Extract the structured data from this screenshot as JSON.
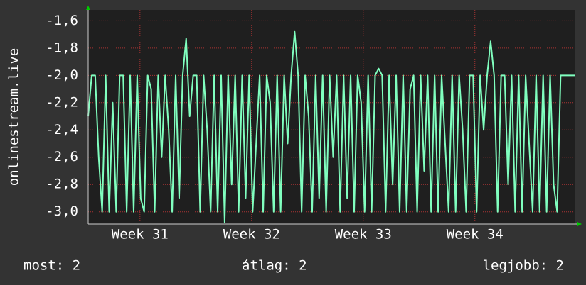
{
  "chart_data": {
    "type": "line",
    "y_label": "onlinestream.live",
    "series": [
      {
        "name": "onlinestream.live",
        "color": "#80ffbf",
        "values": [
          -2.3,
          -2.0,
          -2.0,
          -2.6,
          -3.0,
          -2.0,
          -3.0,
          -2.2,
          -3.0,
          -2.0,
          -2.0,
          -3.0,
          -2.0,
          -3.0,
          -2.0,
          -2.9,
          -3.0,
          -2.0,
          -2.1,
          -3.0,
          -2.0,
          -2.6,
          -2.0,
          -2.4,
          -3.0,
          -2.0,
          -2.9,
          -2.0,
          -1.73,
          -2.3,
          -2.0,
          -2.0,
          -3.0,
          -2.0,
          -2.4,
          -3.0,
          -2.0,
          -3.0,
          -2.0,
          -3.08,
          -2.0,
          -2.8,
          -2.0,
          -3.0,
          -2.0,
          -2.9,
          -2.0,
          -3.0,
          -2.5,
          -2.0,
          -3.0,
          -2.0,
          -2.2,
          -3.0,
          -2.0,
          -3.0,
          -2.0,
          -2.5,
          -2.0,
          -1.68,
          -2.0,
          -3.0,
          -2.0,
          -2.3,
          -3.0,
          -2.0,
          -2.9,
          -2.0,
          -3.0,
          -2.0,
          -2.6,
          -2.0,
          -3.0,
          -2.0,
          -2.9,
          -2.0,
          -3.0,
          -2.0,
          -2.2,
          -3.0,
          -2.0,
          -3.0,
          -2.0,
          -1.95,
          -2.0,
          -3.0,
          -2.0,
          -2.8,
          -2.0,
          -3.0,
          -2.0,
          -3.0,
          -2.1,
          -2.0,
          -3.0,
          -2.0,
          -2.7,
          -2.0,
          -3.0,
          -2.0,
          -3.0,
          -2.0,
          -2.5,
          -3.0,
          -2.0,
          -3.0,
          -2.0,
          -2.4,
          -3.0,
          -2.0,
          -2.0,
          -3.0,
          -2.0,
          -2.4,
          -2.0,
          -1.75,
          -2.0,
          -3.0,
          -2.0,
          -2.0,
          -2.8,
          -2.0,
          -3.0,
          -2.0,
          -3.0,
          -2.0,
          -2.5,
          -3.0,
          -2.0,
          -3.0,
          -2.0,
          -3.0,
          -2.0,
          -2.8,
          -3.0,
          -2.0,
          -2.0,
          -2.0,
          -2.0,
          -2.0
        ]
      }
    ],
    "xlim": [
      0,
      139
    ],
    "xticks": [
      {
        "value": 14.8,
        "label": "Week 31"
      },
      {
        "value": 46.7,
        "label": "Week 32"
      },
      {
        "value": 78.6,
        "label": "Week 33"
      },
      {
        "value": 110.5,
        "label": "Week 34"
      }
    ],
    "ylim": [
      -3.09,
      -1.52
    ],
    "yticks": [
      {
        "value": -1.6,
        "label": "-1,6"
      },
      {
        "value": -1.8,
        "label": "-1,8"
      },
      {
        "value": -2.0,
        "label": "-2,0"
      },
      {
        "value": -2.2,
        "label": "-2,2"
      },
      {
        "value": -2.4,
        "label": "-2,4"
      },
      {
        "value": -2.6,
        "label": "-2,6"
      },
      {
        "value": -2.8,
        "label": "-2,8"
      },
      {
        "value": -3.0,
        "label": "-3,0"
      }
    ],
    "grid": true,
    "footer": {
      "current": "most: 2",
      "average": "átlag: 2",
      "best": "legjobb: 2"
    }
  }
}
